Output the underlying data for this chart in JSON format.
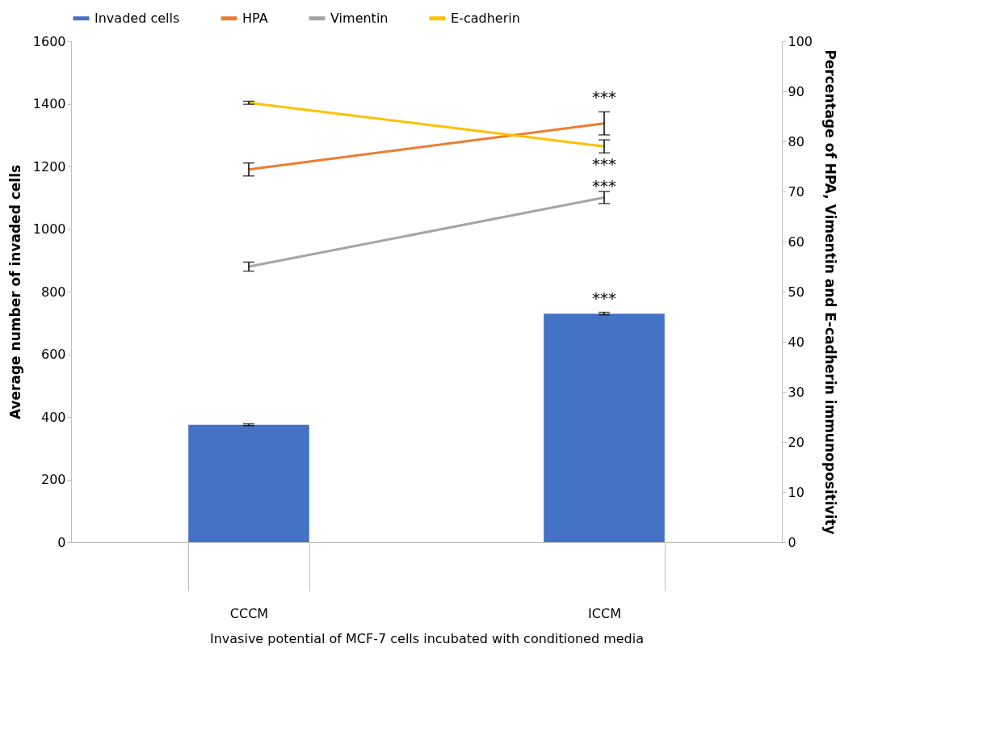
{
  "chart_data": {
    "type": "bar",
    "categories": [
      "CCCM",
      "ICCM"
    ],
    "xlabel": "Invasive potential of MCF-7 cells incubated with conditioned media",
    "ylabel": "Average number of invaded cells",
    "y2label": "Percentage of HPA, Vimentin and E-cadherin immunopositivity",
    "series": [
      {
        "name": "Invaded cells",
        "color": "#4472c4",
        "values": [
          375,
          730
        ],
        "errors": [
          3,
          4
        ]
      },
      {
        "name": "HPA",
        "type": "line",
        "axis": "y2",
        "color": "#ed7d31",
        "values": [
          74.4,
          83.6
        ],
        "errors": [
          1.3,
          2.3
        ]
      },
      {
        "name": "Vimentin",
        "type": "line",
        "axis": "y2",
        "color": "#a5a5a5",
        "values": [
          55,
          68.8
        ],
        "errors": [
          0.9,
          1.2
        ]
      },
      {
        "name": "E-cadherin",
        "type": "line",
        "axis": "y2",
        "color": "#ffc000",
        "values": [
          87.7,
          79
        ],
        "errors": [
          0.3,
          1.3
        ]
      }
    ],
    "ylim": [
      0,
      1600
    ],
    "yticks": [
      0,
      200,
      400,
      600,
      800,
      1000,
      1200,
      1400,
      1600
    ],
    "y2lim": [
      0,
      100
    ],
    "y2ticks": [
      0,
      10,
      20,
      30,
      40,
      50,
      60,
      70,
      80,
      90,
      100
    ],
    "annotations": [
      "***",
      "***",
      "***",
      "***"
    ],
    "legend": "top",
    "grid": false
  }
}
